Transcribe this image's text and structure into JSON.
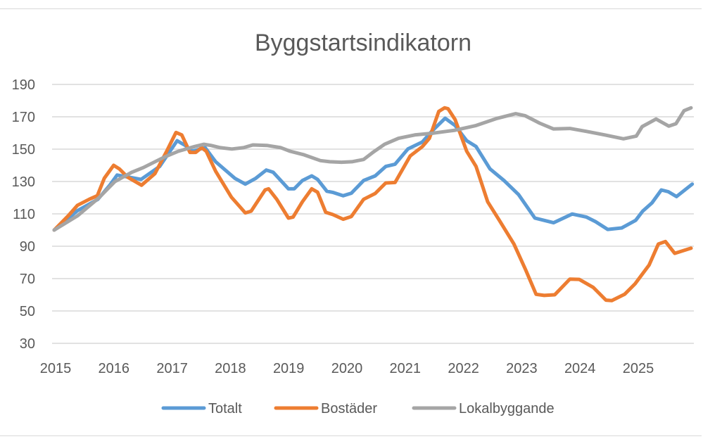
{
  "chart_data": {
    "type": "line",
    "title": "Byggstartsindikatorn",
    "xlabel": "",
    "ylabel": "",
    "ylim": [
      30,
      190
    ],
    "yticks": [
      30,
      50,
      70,
      90,
      110,
      130,
      150,
      170,
      190
    ],
    "xlim": [
      2015,
      2026
    ],
    "xticks": [
      "2015",
      "2016",
      "2017",
      "2018",
      "2019",
      "2020",
      "2021",
      "2022",
      "2023",
      "2024",
      "2025"
    ],
    "grid": true,
    "legend_position": "bottom",
    "series": [
      {
        "name": "Totalt",
        "color": "#5B9BD5",
        "x": [
          2015.0,
          2015.4,
          2015.75,
          2015.96,
          2016.08,
          2016.49,
          2016.81,
          2017.11,
          2017.25,
          2017.37,
          2017.59,
          2017.77,
          2018.1,
          2018.28,
          2018.46,
          2018.64,
          2018.76,
          2019.02,
          2019.12,
          2019.26,
          2019.42,
          2019.52,
          2019.68,
          2019.78,
          2019.96,
          2020.1,
          2020.31,
          2020.51,
          2020.69,
          2020.85,
          2021.07,
          2021.32,
          2021.48,
          2021.71,
          2021.88,
          2022.08,
          2022.24,
          2022.48,
          2022.72,
          2022.97,
          2023.25,
          2023.57,
          2023.89,
          2024.13,
          2024.29,
          2024.5,
          2024.74,
          2024.98,
          2025.1,
          2025.26,
          2025.42,
          2025.54,
          2025.68,
          2025.95
        ],
        "y": [
          100,
          112,
          119,
          128,
          134,
          131.3,
          139.3,
          155.2,
          152.3,
          148.7,
          150.9,
          142.2,
          132,
          128.4,
          132,
          137.1,
          135.7,
          125.5,
          125.5,
          130.6,
          133.5,
          131.3,
          124,
          123.3,
          121.2,
          122.8,
          130.6,
          133.5,
          139.3,
          140.7,
          150.1,
          154.5,
          161,
          169.1,
          164.6,
          155.2,
          151.6,
          137.8,
          130.6,
          121.9,
          107.4,
          104.5,
          109.9,
          108.1,
          105.2,
          100.4,
          101.3,
          106,
          111.7,
          116.8,
          124.8,
          123.7,
          120.7,
          128.4
        ]
      },
      {
        "name": "Bostäder",
        "color": "#ED7D31",
        "x": [
          2015.0,
          2015.24,
          2015.4,
          2015.6,
          2015.74,
          2015.86,
          2016.02,
          2016.12,
          2016.26,
          2016.5,
          2016.73,
          2016.93,
          2017.09,
          2017.19,
          2017.33,
          2017.43,
          2017.53,
          2017.61,
          2017.77,
          2018.04,
          2018.28,
          2018.38,
          2018.62,
          2018.68,
          2018.82,
          2019.02,
          2019.1,
          2019.26,
          2019.42,
          2019.52,
          2019.66,
          2019.78,
          2019.96,
          2020.1,
          2020.31,
          2020.51,
          2020.69,
          2020.85,
          2021.11,
          2021.32,
          2021.44,
          2021.6,
          2021.7,
          2021.76,
          2021.88,
          2022.08,
          2022.24,
          2022.44,
          2022.64,
          2022.89,
          2023.09,
          2023.27,
          2023.41,
          2023.59,
          2023.85,
          2024.01,
          2024.25,
          2024.47,
          2024.57,
          2024.79,
          2024.97,
          2025.21,
          2025.37,
          2025.49,
          2025.65,
          2025.93
        ],
        "y": [
          100,
          108.8,
          115.3,
          119,
          121.2,
          132,
          140,
          137.8,
          132.7,
          127.7,
          134.9,
          148.7,
          160.3,
          158.8,
          148,
          148,
          150.9,
          148.7,
          136.4,
          120.4,
          110.6,
          111.7,
          124.8,
          125.5,
          119,
          107.4,
          108,
          117.5,
          125.5,
          123.4,
          111,
          109.6,
          106.7,
          108.4,
          119,
          122.6,
          129.1,
          129.4,
          145.8,
          151.6,
          156.7,
          173.3,
          175.5,
          175,
          168.3,
          148.7,
          139.3,
          117.5,
          106,
          91.4,
          75.5,
          60.3,
          59.6,
          60,
          69.7,
          69.5,
          64.6,
          56.7,
          56.4,
          60.3,
          66.8,
          78.4,
          91.4,
          92.9,
          85.6,
          88.8
        ]
      },
      {
        "name": "Lokalbyggande",
        "color": "#A5A5A5",
        "x": [
          2015.0,
          2015.4,
          2015.76,
          2016.04,
          2016.33,
          2016.53,
          2016.89,
          2017.13,
          2017.41,
          2017.57,
          2017.69,
          2017.85,
          2018.05,
          2018.25,
          2018.41,
          2018.65,
          2018.89,
          2019.05,
          2019.29,
          2019.57,
          2019.73,
          2019.93,
          2020.11,
          2020.31,
          2020.47,
          2020.67,
          2020.91,
          2021.19,
          2021.51,
          2021.88,
          2022.24,
          2022.6,
          2022.92,
          2023.08,
          2023.33,
          2023.57,
          2023.85,
          2024.13,
          2024.45,
          2024.77,
          2024.99,
          2025.09,
          2025.33,
          2025.55,
          2025.67,
          2025.81,
          2025.93
        ],
        "y": [
          100,
          108.8,
          119.7,
          129.9,
          135.7,
          138.6,
          145.1,
          148.7,
          151.6,
          153,
          152.3,
          150.9,
          150.1,
          150.9,
          152.6,
          152.3,
          150.9,
          148.7,
          146.5,
          142.9,
          142.2,
          141.9,
          142.2,
          143.6,
          148,
          153,
          156.7,
          158.8,
          159.9,
          161.7,
          164.6,
          169,
          171.9,
          170.7,
          166.1,
          162.5,
          162.8,
          161,
          158.8,
          156.4,
          158.1,
          163.9,
          168.6,
          164.2,
          165.7,
          173.8,
          175.5
        ]
      }
    ]
  }
}
